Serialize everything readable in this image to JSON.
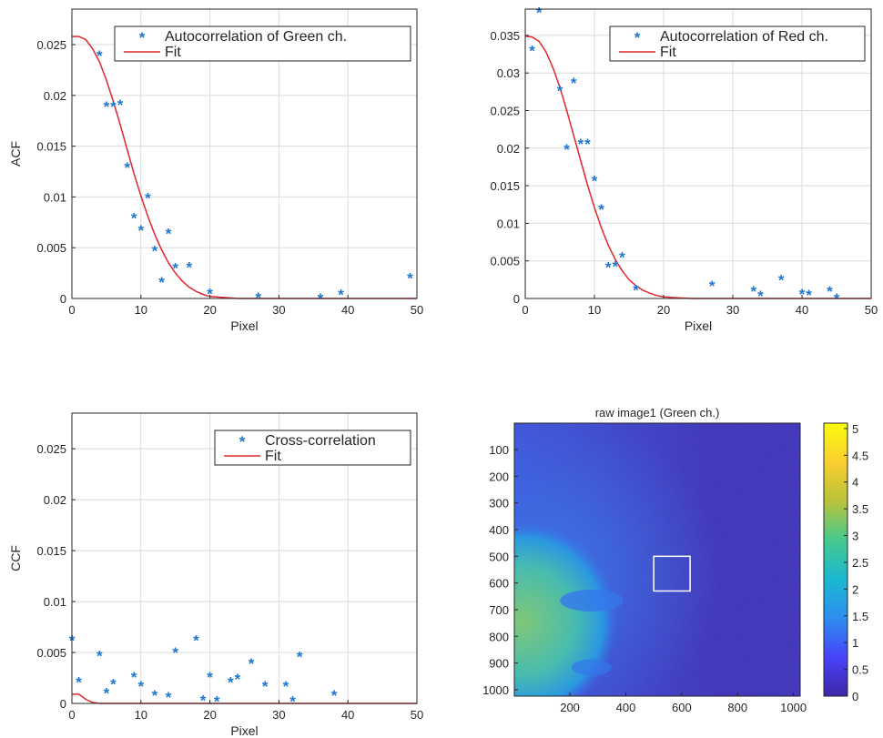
{
  "chart_data": [
    {
      "type": "scatter",
      "id": "green",
      "title": "",
      "xlabel": "Pixel",
      "ylabel": "ACF",
      "xlim": [
        0,
        50
      ],
      "ylim": [
        0,
        0.0285
      ],
      "xticks": [
        0,
        10,
        20,
        30,
        40,
        50
      ],
      "yticks": [
        0,
        0.005,
        0.01,
        0.015,
        0.02,
        0.025
      ],
      "grid": true,
      "legend": {
        "placement": "top-right",
        "entries": [
          "Autocorrelation of Green ch.",
          "Fit"
        ]
      },
      "series": [
        {
          "name": "Autocorrelation of Green ch.",
          "kind": "points",
          "x": [
            4,
            5,
            6,
            7,
            8,
            9,
            10,
            11,
            12,
            13,
            14,
            15,
            17,
            20,
            27,
            36,
            39,
            49
          ],
          "y": [
            0.024,
            0.019,
            0.019,
            0.0192,
            0.013,
            0.008,
            0.0068,
            0.01,
            0.0048,
            0.0017,
            0.0065,
            0.0031,
            0.0032,
            0.0006,
            0.0002,
            0.0001,
            0.0005,
            0.0021
          ]
        },
        {
          "name": "Fit",
          "kind": "line",
          "x": [
            0,
            1,
            2,
            3,
            4,
            5,
            6,
            7,
            8,
            9,
            10,
            11,
            12,
            13,
            14,
            15,
            16,
            17,
            18,
            19,
            20,
            22,
            24,
            26,
            30,
            40,
            50
          ],
          "y": [
            0.0258,
            0.0258,
            0.0255,
            0.0246,
            0.0233,
            0.0215,
            0.0194,
            0.0171,
            0.0147,
            0.0123,
            0.0101,
            0.0081,
            0.0063,
            0.0048,
            0.0035,
            0.0025,
            0.0017,
            0.0011,
            0.0007,
            0.0004,
            0.0002,
            0.0001,
            0,
            0,
            0,
            0,
            0
          ]
        }
      ]
    },
    {
      "type": "scatter",
      "id": "red",
      "title": "",
      "xlabel": "Pixel",
      "ylabel": "",
      "xlim": [
        0,
        50
      ],
      "ylim": [
        0,
        0.0385
      ],
      "xticks": [
        0,
        10,
        20,
        30,
        40,
        50
      ],
      "yticks": [
        0,
        0.005,
        0.01,
        0.015,
        0.02,
        0.025,
        0.03,
        0.035
      ],
      "grid": true,
      "legend": {
        "placement": "top-right",
        "entries": [
          "Autocorrelation of Red ch.",
          "Fit"
        ]
      },
      "series": [
        {
          "name": "Autocorrelation of Red ch.",
          "kind": "points",
          "x": [
            1,
            2,
            5,
            6,
            7,
            8,
            9,
            10,
            11,
            12,
            13,
            14,
            16,
            27,
            33,
            34,
            37,
            40,
            41,
            44,
            45
          ],
          "y": [
            0.0331,
            0.0382,
            0.0278,
            0.02,
            0.0288,
            0.0207,
            0.0207,
            0.0158,
            0.012,
            0.0043,
            0.0044,
            0.0056,
            0.0013,
            0.0018,
            0.0011,
            0.0005,
            0.0026,
            0.0007,
            0.0006,
            0.0011,
            0.0001
          ]
        },
        {
          "name": "Fit",
          "kind": "line",
          "x": [
            0,
            1,
            2,
            3,
            4,
            5,
            6,
            7,
            8,
            9,
            10,
            11,
            12,
            13,
            14,
            15,
            16,
            17,
            18,
            19,
            20,
            22,
            24,
            26,
            30,
            40,
            50
          ],
          "y": [
            0.0349,
            0.0348,
            0.0342,
            0.0328,
            0.0307,
            0.0281,
            0.025,
            0.0217,
            0.0184,
            0.0151,
            0.0121,
            0.0094,
            0.0071,
            0.0052,
            0.0037,
            0.0025,
            0.0017,
            0.0011,
            0.0007,
            0.0004,
            0.0002,
            0.0001,
            0,
            0,
            0,
            0,
            0
          ]
        }
      ]
    },
    {
      "type": "scatter",
      "id": "cross",
      "title": "",
      "xlabel": "Pixel",
      "ylabel": "CCF",
      "xlim": [
        0,
        50
      ],
      "ylim": [
        0,
        0.0285
      ],
      "xticks": [
        0,
        10,
        20,
        30,
        40,
        50
      ],
      "yticks": [
        0,
        0.005,
        0.01,
        0.015,
        0.02,
        0.025
      ],
      "grid": true,
      "legend": {
        "placement": "top-right",
        "entries": [
          "Cross-correlation",
          "Fit"
        ]
      },
      "series": [
        {
          "name": "Cross-correlation",
          "kind": "points",
          "x": [
            0,
            1,
            4,
            5,
            6,
            9,
            10,
            12,
            14,
            15,
            18,
            19,
            20,
            21,
            23,
            24,
            26,
            28,
            31,
            32,
            33,
            38
          ],
          "y": [
            0.0063,
            0.0022,
            0.0048,
            0.0011,
            0.002,
            0.0027,
            0.0018,
            0.0009,
            0.0007,
            0.0051,
            0.0063,
            0.0004,
            0.0027,
            0.0003,
            0.0022,
            0.0025,
            0.004,
            0.0018,
            0.0018,
            0.0003,
            0.0047,
            0.0009
          ]
        },
        {
          "name": "Fit",
          "kind": "line",
          "x": [
            0,
            1,
            2,
            3,
            4,
            5,
            6,
            8,
            10,
            20,
            30,
            40,
            50
          ],
          "y": [
            0.0009,
            0.0009,
            0.0004,
            0.0001,
            0,
            0,
            0,
            0,
            0,
            0,
            0,
            0,
            0
          ]
        }
      ]
    },
    {
      "type": "heatmap",
      "id": "image",
      "title": "raw image1 (Green ch.)",
      "xlim": [
        1,
        1024
      ],
      "ylim": [
        1,
        1024
      ],
      "xticks": [
        200,
        400,
        600,
        800,
        1000
      ],
      "yticks": [
        100,
        200,
        300,
        400,
        500,
        600,
        700,
        800,
        900,
        1000
      ],
      "colorbar": {
        "ticks": [
          0,
          0.5,
          1,
          1.5,
          2,
          2.5,
          3,
          3.5,
          4,
          4.5,
          5
        ],
        "range": [
          0,
          5.1
        ],
        "colormap": [
          "#3e26a8",
          "#4743f8",
          "#2d8ef0",
          "#1ab8d0",
          "#45c98f",
          "#b9c23a",
          "#f9cf2e",
          "#f9fb0e"
        ]
      },
      "roi": {
        "x0": 500,
        "y0": 500,
        "x1": 630,
        "y1": 630,
        "color": "#ffffff"
      }
    }
  ]
}
